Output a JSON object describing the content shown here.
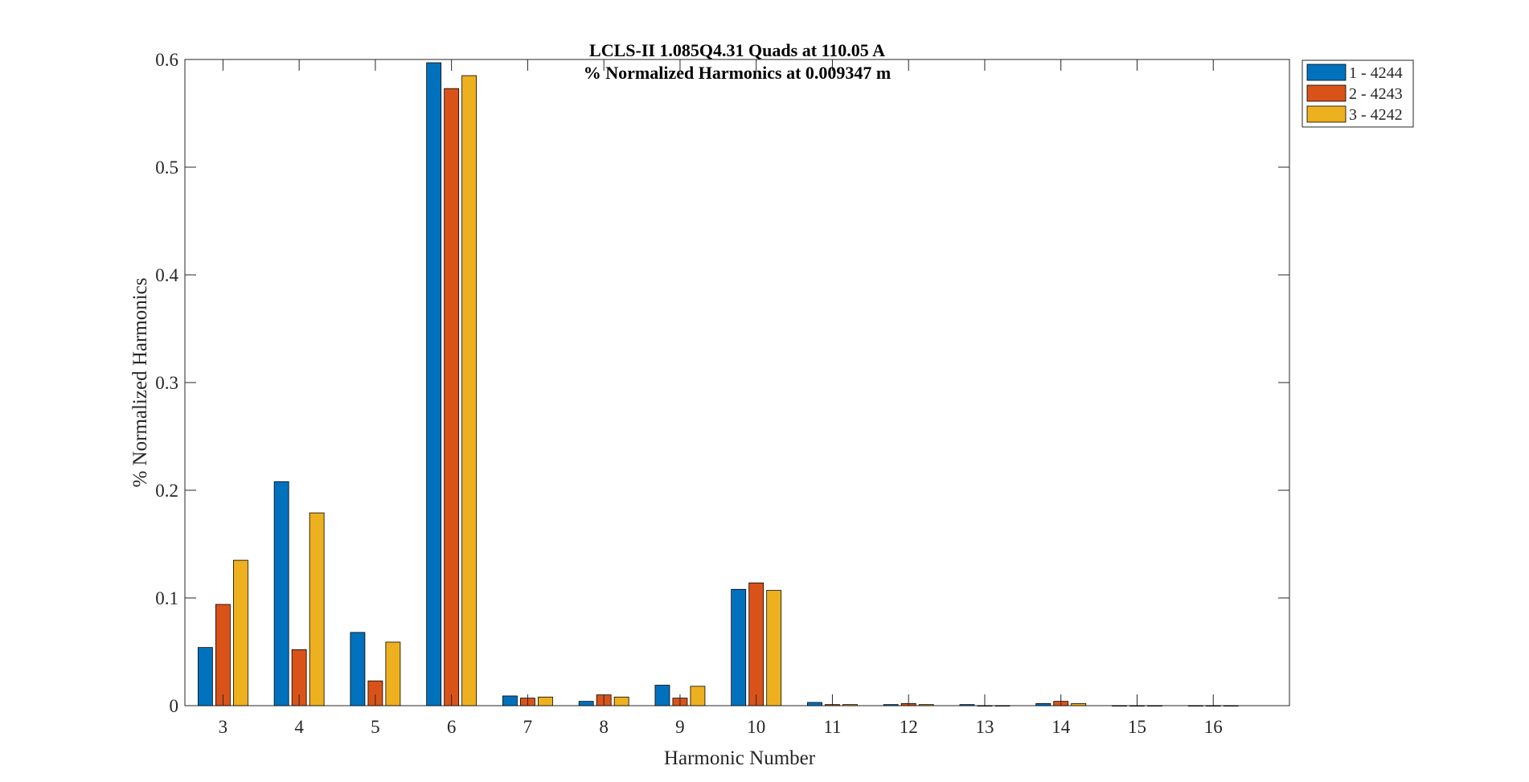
{
  "chart_data": {
    "type": "bar",
    "title": "LCLS-II 1.085Q4.31 Quads at 110.05 A",
    "subtitle": "% Normalized Harmonics at 0.009347 m",
    "xlabel": "Harmonic Number",
    "ylabel": "% Normalized Harmonics",
    "categories": [
      "3",
      "4",
      "5",
      "6",
      "7",
      "8",
      "9",
      "10",
      "11",
      "12",
      "13",
      "14",
      "15",
      "16"
    ],
    "ylim": [
      0,
      0.6
    ],
    "yticks": [
      "0",
      "0.1",
      "0.2",
      "0.3",
      "0.4",
      "0.5",
      "0.6"
    ],
    "grid": false,
    "legend_position": "outside top-right",
    "series": [
      {
        "name": "1 - 4244",
        "color": "#0072BD",
        "values": [
          0.054,
          0.208,
          0.068,
          0.597,
          0.009,
          0.004,
          0.019,
          0.108,
          0.003,
          0.001,
          0.001,
          0.002,
          0.0,
          0.0
        ]
      },
      {
        "name": "2 - 4243",
        "color": "#D95319",
        "values": [
          0.094,
          0.052,
          0.023,
          0.573,
          0.007,
          0.01,
          0.007,
          0.114,
          0.001,
          0.002,
          0.0,
          0.004,
          0.0,
          0.0
        ]
      },
      {
        "name": "3 - 4242",
        "color": "#EDB120",
        "values": [
          0.135,
          0.179,
          0.059,
          0.585,
          0.008,
          0.008,
          0.018,
          0.107,
          0.001,
          0.001,
          0.0,
          0.002,
          0.0,
          0.0
        ]
      }
    ],
    "colors": {
      "axis": "#262626",
      "edge": "#000000",
      "background": "#ffffff"
    }
  }
}
